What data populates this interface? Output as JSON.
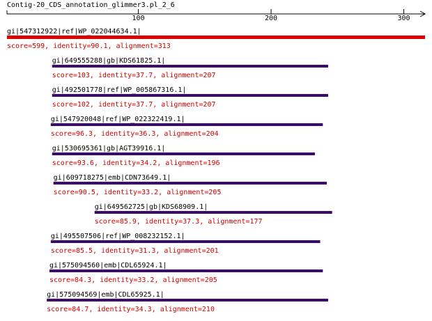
{
  "chart_data": {
    "type": "alignment",
    "title": "Contig-20_CDS_annotation_glimmer3.pl_2_6",
    "xlim": [
      1,
      316
    ],
    "xticks": [
      100,
      200,
      300
    ],
    "hits": [
      {
        "name": "gi|547312922|ref|WP_022044634.1|",
        "label": "score=599, identity=90.1, alignment=313",
        "start": 1,
        "end": 316,
        "color": "#dd0000"
      },
      {
        "name": "gi|649555288|gb|KDS61825.1|",
        "label": "score=103, identity=37.7, alignment=207",
        "start": 35,
        "end": 243,
        "color": "#3c0a6e"
      },
      {
        "name": "gi|492501778|ref|WP_005867316.1|",
        "label": "score=102, identity=37.7, alignment=207",
        "start": 35,
        "end": 243,
        "color": "#3c0a6e"
      },
      {
        "name": "gi|547920048|ref|WP_022322419.1|",
        "label": "score=96.3, identity=36.3, alignment=204",
        "start": 34,
        "end": 239,
        "color": "#3c0a6e"
      },
      {
        "name": "gi|530695361|gb|AGT39916.1|",
        "label": "score=93.6, identity=34.2, alignment=196",
        "start": 35,
        "end": 233,
        "color": "#3c0a6e"
      },
      {
        "name": "gi|609718275|emb|CDN73649.1|",
        "label": "score=90.5, identity=33.2, alignment=205",
        "start": 36,
        "end": 242,
        "color": "#3c0a6e"
      },
      {
        "name": "gi|649562725|gb|KDS68909.1|",
        "label": "score=85.9, identity=37.3, alignment=177",
        "start": 67,
        "end": 246,
        "color": "#3c0a6e"
      },
      {
        "name": "gi|495507506|ref|WP_008232152.1|",
        "label": "score=85.5, identity=31.3, alignment=201",
        "start": 34,
        "end": 237,
        "color": "#3c0a6e"
      },
      {
        "name": "gi|575094560|emb|CDL65924.1|",
        "label": "score=84.3, identity=33.2, alignment=205",
        "start": 33,
        "end": 239,
        "color": "#3c0a6e"
      },
      {
        "name": "gi|575094569|emb|CDL65925.1|",
        "label": "score=84.7, identity=34.3, alignment=210",
        "start": 31,
        "end": 243,
        "color": "#3c0a6e"
      }
    ]
  }
}
